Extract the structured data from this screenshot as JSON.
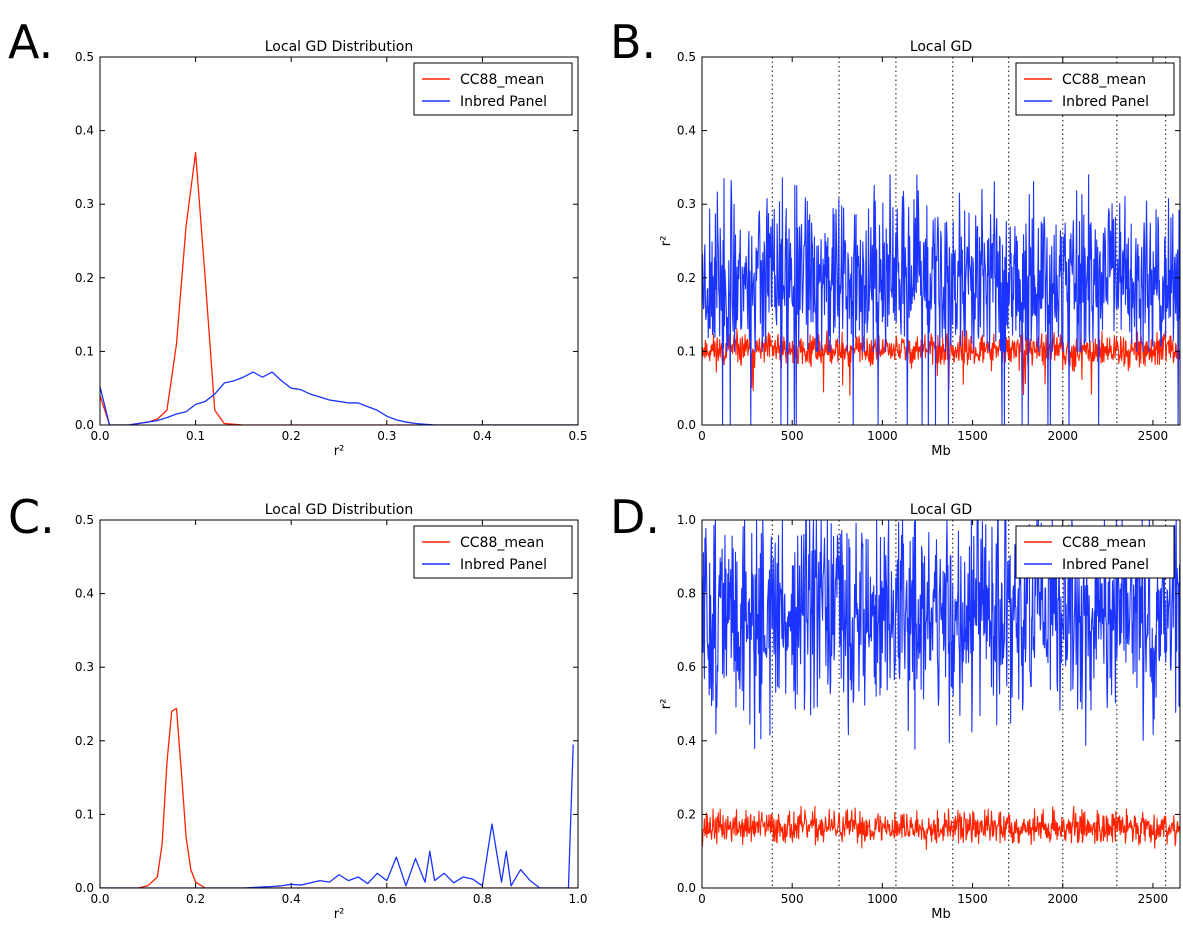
{
  "colors": {
    "cc88": "#ff2200",
    "inbred": "#1a33ff",
    "chrom_line": "#333333"
  },
  "chart_data": [
    {
      "panel": "A.",
      "type": "line",
      "title": "Local GD Distribution",
      "xlabel": "r²",
      "ylabel": "",
      "xlim": [
        0,
        0.5
      ],
      "ylim": [
        0,
        0.5
      ],
      "xticks": [
        "0.0",
        "0.1",
        "0.2",
        "0.3",
        "0.4",
        "0.5"
      ],
      "yticks": [
        "0.0",
        "0.1",
        "0.2",
        "0.3",
        "0.4",
        "0.5"
      ],
      "legend": "top-right",
      "series": [
        {
          "name": "CC88_mean",
          "color": "#ff2200",
          "x": [
            0,
            0.01,
            0.02,
            0.03,
            0.04,
            0.05,
            0.06,
            0.07,
            0.08,
            0.09,
            0.1,
            0.11,
            0.12,
            0.13,
            0.15,
            0.2,
            0.3,
            0.4,
            0.5
          ],
          "y": [
            0.04,
            0,
            0,
            0,
            0.002,
            0.004,
            0.008,
            0.02,
            0.11,
            0.27,
            0.37,
            0.2,
            0.02,
            0.002,
            0,
            0,
            0,
            0,
            0
          ]
        },
        {
          "name": "Inbred Panel",
          "color": "#1a33ff",
          "x": [
            0,
            0.01,
            0.02,
            0.03,
            0.04,
            0.05,
            0.06,
            0.07,
            0.08,
            0.09,
            0.1,
            0.11,
            0.12,
            0.13,
            0.14,
            0.15,
            0.16,
            0.17,
            0.18,
            0.19,
            0.2,
            0.21,
            0.22,
            0.23,
            0.24,
            0.25,
            0.26,
            0.27,
            0.28,
            0.29,
            0.3,
            0.31,
            0.32,
            0.33,
            0.34,
            0.35,
            0.4,
            0.5
          ],
          "y": [
            0.052,
            0,
            0,
            0,
            0.002,
            0.004,
            0.006,
            0.01,
            0.015,
            0.018,
            0.028,
            0.032,
            0.042,
            0.057,
            0.06,
            0.065,
            0.072,
            0.065,
            0.072,
            0.06,
            0.05,
            0.048,
            0.042,
            0.038,
            0.034,
            0.032,
            0.03,
            0.03,
            0.025,
            0.02,
            0.012,
            0.007,
            0.004,
            0.002,
            0.001,
            0,
            0,
            0
          ]
        }
      ]
    },
    {
      "panel": "B.",
      "type": "line",
      "title": "Local GD",
      "xlabel": "Mb",
      "ylabel": "r²",
      "xlim": [
        0,
        2650
      ],
      "ylim": [
        0,
        0.5
      ],
      "xticks": [
        0,
        500,
        1000,
        1500,
        2000,
        2500
      ],
      "yticks": [
        "0.0",
        "0.1",
        "0.2",
        "0.3",
        "0.4",
        "0.5"
      ],
      "legend": "top-right",
      "chromosome_boundaries": [
        390,
        760,
        1075,
        1390,
        1700,
        2000,
        2300,
        2570
      ],
      "series": [
        {
          "name": "CC88_mean",
          "color": "#ff2200",
          "kind": "noise",
          "n": 1000,
          "base": 0.102,
          "spread": 0.011,
          "dip_prob": 0.02,
          "dip_min": 0.04,
          "seed": 11
        },
        {
          "name": "Inbred Panel",
          "color": "#1a33ff",
          "kind": "noise",
          "n": 1000,
          "base": 0.2,
          "spread": 0.055,
          "min": 0.1,
          "max": 0.34,
          "zero_prob": 0.02,
          "seed": 23
        }
      ]
    },
    {
      "panel": "C.",
      "type": "line",
      "title": "Local GD Distribution",
      "xlabel": "r²",
      "ylabel": "",
      "xlim": [
        0,
        1.0
      ],
      "ylim": [
        0,
        0.5
      ],
      "xticks": [
        "0.0",
        "0.2",
        "0.4",
        "0.6",
        "0.8",
        "1.0"
      ],
      "yticks": [
        "0.0",
        "0.1",
        "0.2",
        "0.3",
        "0.4",
        "0.5"
      ],
      "legend": "top-right",
      "series": [
        {
          "name": "CC88_mean",
          "color": "#ff2200",
          "x": [
            0,
            0.08,
            0.1,
            0.12,
            0.13,
            0.14,
            0.15,
            0.16,
            0.17,
            0.18,
            0.19,
            0.2,
            0.22,
            0.3,
            0.5,
            1.0
          ],
          "y": [
            0,
            0,
            0.003,
            0.015,
            0.06,
            0.17,
            0.24,
            0.244,
            0.16,
            0.07,
            0.025,
            0.008,
            0,
            0,
            0,
            0
          ]
        },
        {
          "name": "Inbred Panel",
          "color": "#1a33ff",
          "x": [
            0,
            0.3,
            0.36,
            0.38,
            0.4,
            0.42,
            0.44,
            0.46,
            0.48,
            0.5,
            0.52,
            0.54,
            0.56,
            0.58,
            0.6,
            0.62,
            0.64,
            0.66,
            0.68,
            0.69,
            0.7,
            0.72,
            0.74,
            0.76,
            0.78,
            0.8,
            0.82,
            0.84,
            0.85,
            0.86,
            0.88,
            0.9,
            0.92,
            0.94,
            0.96,
            0.98,
            0.99
          ],
          "y": [
            0,
            0,
            0.002,
            0.003,
            0.005,
            0.004,
            0.007,
            0.01,
            0.008,
            0.018,
            0.01,
            0.015,
            0.006,
            0.02,
            0.01,
            0.042,
            0.003,
            0.04,
            0.008,
            0.05,
            0.01,
            0.02,
            0.007,
            0.015,
            0.012,
            0.003,
            0.087,
            0.008,
            0.05,
            0.003,
            0.025,
            0.01,
            0,
            0,
            0,
            0,
            0.195
          ]
        }
      ]
    },
    {
      "panel": "D.",
      "type": "line",
      "title": "Local GD",
      "xlabel": "Mb",
      "ylabel": "r²",
      "xlim": [
        0,
        2650
      ],
      "ylim": [
        0,
        1.0
      ],
      "xticks": [
        0,
        500,
        1000,
        1500,
        2000,
        2500
      ],
      "yticks": [
        "0.0",
        "0.2",
        "0.4",
        "0.6",
        "0.8",
        "1.0"
      ],
      "legend": "top-right",
      "chromosome_boundaries": [
        390,
        760,
        1075,
        1390,
        1700,
        2000,
        2300,
        2570
      ],
      "series": [
        {
          "name": "CC88_mean",
          "color": "#ff2200",
          "kind": "noise",
          "n": 1000,
          "base": 0.165,
          "spread": 0.022,
          "min": 0.08,
          "max": 0.24,
          "seed": 37
        },
        {
          "name": "Inbred Panel",
          "color": "#1a33ff",
          "kind": "noise",
          "n": 1000,
          "base": 0.74,
          "spread": 0.14,
          "min": 0.3,
          "max": 1.0,
          "seed": 51
        }
      ]
    }
  ]
}
